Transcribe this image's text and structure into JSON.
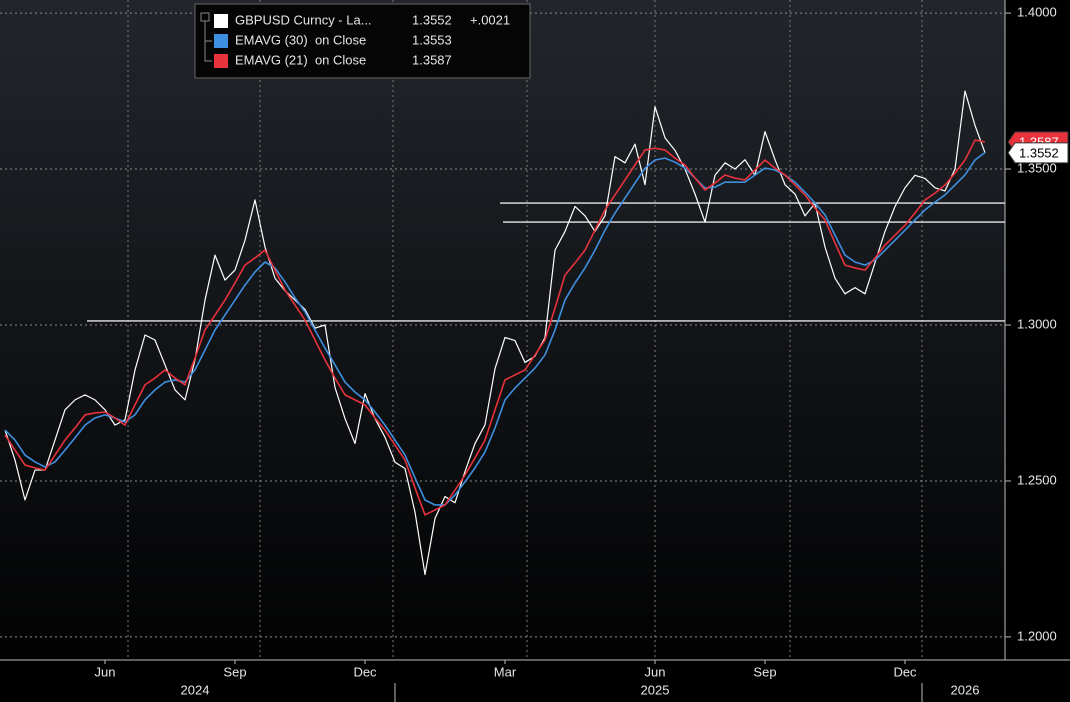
{
  "chart_data": {
    "type": "line",
    "categories": [
      null,
      null,
      null,
      null,
      null,
      null,
      null,
      null,
      null,
      null,
      "Jun",
      null,
      null,
      null,
      null,
      null,
      null,
      null,
      null,
      null,
      null,
      null,
      null,
      "Sep",
      null,
      null,
      null,
      null,
      null,
      null,
      null,
      null,
      null,
      null,
      null,
      null,
      "Dec",
      null,
      null,
      null,
      null,
      null,
      null,
      null,
      null,
      null,
      null,
      null,
      null,
      null,
      "Mar",
      null,
      null,
      null,
      null,
      null,
      null,
      null,
      null,
      null,
      null,
      null,
      null,
      null,
      null,
      "Jun",
      null,
      null,
      null,
      null,
      null,
      null,
      null,
      null,
      null,
      null,
      "Sep",
      null,
      null,
      null,
      null,
      null,
      null,
      null,
      null,
      null,
      null,
      null,
      null,
      null,
      "Dec",
      null,
      null,
      null,
      null,
      null,
      null,
      null,
      null
    ],
    "year_categories": [
      null,
      null,
      null,
      null,
      null,
      null,
      null,
      null,
      null,
      null,
      null,
      null,
      null,
      null,
      null,
      null,
      null,
      null,
      null,
      "2024",
      null,
      null,
      null,
      null,
      null,
      null,
      null,
      null,
      null,
      null,
      null,
      null,
      null,
      null,
      null,
      null,
      null,
      null,
      null,
      null,
      null,
      null,
      null,
      null,
      null,
      null,
      null,
      null,
      null,
      null,
      null,
      null,
      null,
      null,
      null,
      null,
      null,
      null,
      null,
      null,
      null,
      null,
      null,
      null,
      null,
      "2025",
      null,
      null,
      null,
      null,
      null,
      null,
      null,
      null,
      null,
      null,
      null,
      null,
      null,
      null,
      null,
      null,
      null,
      null,
      null,
      null,
      null,
      null,
      null,
      null,
      null,
      null,
      null,
      null,
      null,
      null,
      "2026",
      null,
      null
    ],
    "series": [
      {
        "name": "GBPUSD Curncy - La...",
        "color": "#ffffff",
        "last": 1.3552,
        "change": {
          "value": 0.0021,
          "label": "+.0021"
        },
        "values": [
          1.2663,
          1.2567,
          1.2439,
          1.2535,
          1.2535,
          1.2631,
          1.2728,
          1.276,
          1.2776,
          1.276,
          1.2728,
          1.2679,
          1.2696,
          1.2856,
          1.2968,
          1.2952,
          1.2872,
          1.2792,
          1.276,
          1.2888,
          1.308,
          1.3224,
          1.3144,
          1.3176,
          1.3272,
          1.3401,
          1.325,
          1.315,
          1.311,
          1.308,
          1.305,
          1.299,
          1.3,
          1.28,
          1.27,
          1.262,
          1.278,
          1.27,
          1.264,
          1.256,
          1.254,
          1.24,
          1.22,
          1.238,
          1.245,
          1.243,
          1.253,
          1.262,
          1.268,
          1.286,
          1.296,
          1.295,
          1.288,
          1.29,
          1.296,
          1.324,
          1.33,
          1.338,
          1.335,
          1.33,
          1.335,
          1.354,
          1.352,
          1.358,
          1.345,
          1.37,
          1.36,
          1.356,
          1.35,
          1.342,
          1.333,
          1.348,
          1.352,
          1.35,
          1.353,
          1.348,
          1.362,
          1.353,
          1.345,
          1.342,
          1.335,
          1.339,
          1.325,
          1.315,
          1.31,
          1.312,
          1.31,
          1.32,
          1.33,
          1.338,
          1.344,
          1.348,
          1.347,
          1.344,
          1.343,
          1.35,
          1.375,
          1.364,
          1.3552
        ]
      },
      {
        "name": "EMAVG (30)  on Close",
        "color": "#3f8fe0",
        "last": 1.3553,
        "values": [
          1.2663,
          1.2631,
          1.2583,
          1.2561,
          1.2545,
          1.2561,
          1.2599,
          1.2638,
          1.2679,
          1.2702,
          1.2712,
          1.2702,
          1.2689,
          1.2712,
          1.276,
          1.2792,
          1.2817,
          1.2824,
          1.2817,
          1.2856,
          1.292,
          1.2984,
          1.3032,
          1.308,
          1.3128,
          1.317,
          1.3202,
          1.3183,
          1.3138,
          1.3087,
          1.3042,
          1.2984,
          1.2926,
          1.2872,
          1.2817,
          1.2785,
          1.276,
          1.2721,
          1.2679,
          1.2631,
          1.2583,
          1.251,
          1.2439,
          1.2423,
          1.2423,
          1.2455,
          1.2497,
          1.2542,
          1.2593,
          1.267,
          1.276,
          1.2798,
          1.283,
          1.2862,
          1.2904,
          1.2984,
          1.308,
          1.3135,
          1.3183,
          1.324,
          1.3304,
          1.3359,
          1.3407,
          1.3455,
          1.3503,
          1.3529,
          1.3535,
          1.3522,
          1.3503,
          1.3471,
          1.3439,
          1.3442,
          1.3458,
          1.3458,
          1.3458,
          1.3481,
          1.3503,
          1.3497,
          1.3481,
          1.3458,
          1.3426,
          1.3391,
          1.3353,
          1.3288,
          1.3224,
          1.3202,
          1.3192,
          1.3208,
          1.324,
          1.3272,
          1.3304,
          1.3337,
          1.3369,
          1.3394,
          1.3417,
          1.3449,
          1.3481,
          1.3529,
          1.3553
        ]
      },
      {
        "name": "EMAVG (21)  on Close",
        "color": "#e8323c",
        "last": 1.3587,
        "values": [
          1.2647,
          1.2599,
          1.2551,
          1.2542,
          1.2535,
          1.2583,
          1.2631,
          1.267,
          1.2712,
          1.2718,
          1.2721,
          1.2702,
          1.2679,
          1.2744,
          1.2808,
          1.283,
          1.2856,
          1.283,
          1.2808,
          1.2894,
          1.2984,
          1.3032,
          1.308,
          1.3135,
          1.3192,
          1.3215,
          1.324,
          1.3176,
          1.3112,
          1.3064,
          1.3016,
          1.2952,
          1.2888,
          1.283,
          1.2776,
          1.276,
          1.2744,
          1.2702,
          1.2663,
          1.2615,
          1.2567,
          1.2478,
          1.2391,
          1.2407,
          1.2423,
          1.2471,
          1.2519,
          1.2574,
          1.2631,
          1.2728,
          1.2824,
          1.284,
          1.2856,
          1.2904,
          1.2952,
          1.3054,
          1.316,
          1.3199,
          1.324,
          1.3304,
          1.3369,
          1.3417,
          1.3465,
          1.3513,
          1.3561,
          1.3567,
          1.3561,
          1.3535,
          1.3513,
          1.3471,
          1.3433,
          1.3455,
          1.3481,
          1.3471,
          1.3465,
          1.3497,
          1.3529,
          1.3503,
          1.3481,
          1.3449,
          1.3417,
          1.3375,
          1.3337,
          1.3263,
          1.3192,
          1.3183,
          1.3176,
          1.3215,
          1.3256,
          1.3288,
          1.332,
          1.3359,
          1.3401,
          1.3423,
          1.3449,
          1.3487,
          1.3529,
          1.3593,
          1.3587
        ]
      }
    ],
    "reference_lines": [
      1.3013,
      1.3391,
      1.333
    ],
    "ylim": [
      1.1926,
      1.4042
    ],
    "yticks": [
      {
        "value": 1.2,
        "label": "1.2000"
      },
      {
        "value": 1.25,
        "label": "1.2500"
      },
      {
        "value": 1.3,
        "label": "1.3000"
      },
      {
        "value": 1.35,
        "label": "1.3500"
      },
      {
        "value": 1.4,
        "label": "1.4000"
      }
    ],
    "grid": true,
    "legend": "top-left"
  }
}
